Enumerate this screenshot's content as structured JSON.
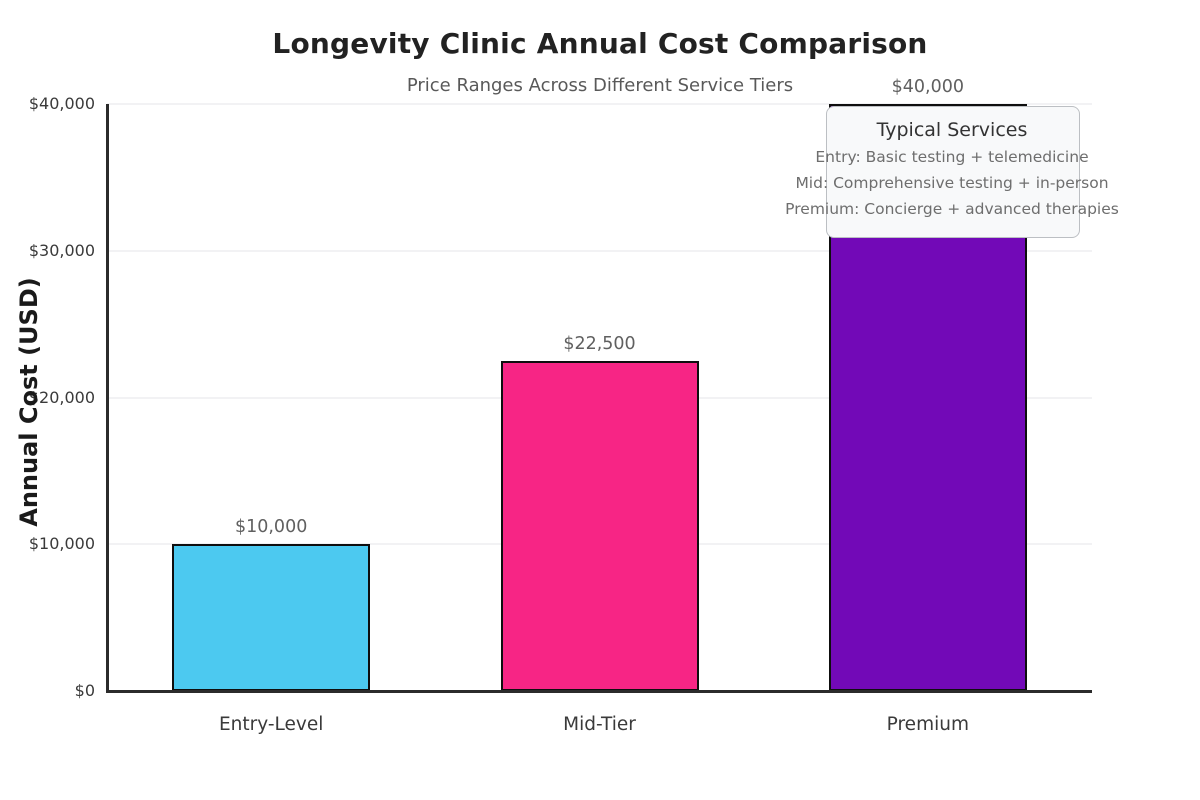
{
  "chart_data": {
    "type": "bar",
    "title": "Longevity Clinic Annual Cost Comparison",
    "subtitle": "Price Ranges Across Different Service Tiers",
    "ylabel": "Annual Cost (USD)",
    "xlabel": "",
    "categories": [
      "Entry-Level",
      "Mid-Tier",
      "Premium"
    ],
    "values": [
      10000,
      22500,
      40000
    ],
    "value_labels": [
      "$10,000",
      "$22,500",
      "$40,000"
    ],
    "bar_colors": [
      "#4cc9f0",
      "#f72585",
      "#7209b7"
    ],
    "bar_edge_color": "#0e0e0e",
    "ylim": [
      0,
      40000
    ],
    "yticks": [
      0,
      10000,
      20000,
      30000,
      40000
    ],
    "ytick_labels": [
      "$0",
      "$10,000",
      "$20,000",
      "$30,000",
      "$40,000"
    ],
    "grid": true,
    "grid_color": "#f2f2f4",
    "legend_position": "none",
    "annotation": {
      "title": "Typical Services",
      "lines": [
        "Entry: Basic testing + telemedicine",
        "Mid: Comprehensive testing + in-person",
        "Premium: Concierge + advanced therapies"
      ]
    },
    "colors": {
      "background": "#ffffff",
      "title_text": "#222222",
      "subtitle_text": "#595959",
      "axis_spine": "#2b2b2b",
      "tick_label_text": "#3a3a3a",
      "value_label_text": "#606060",
      "annotation_title_text": "#333333",
      "annotation_body_text": "#6e6e6e",
      "annotation_background": "#f8f9fa",
      "annotation_border": "#bcbfc3"
    }
  }
}
